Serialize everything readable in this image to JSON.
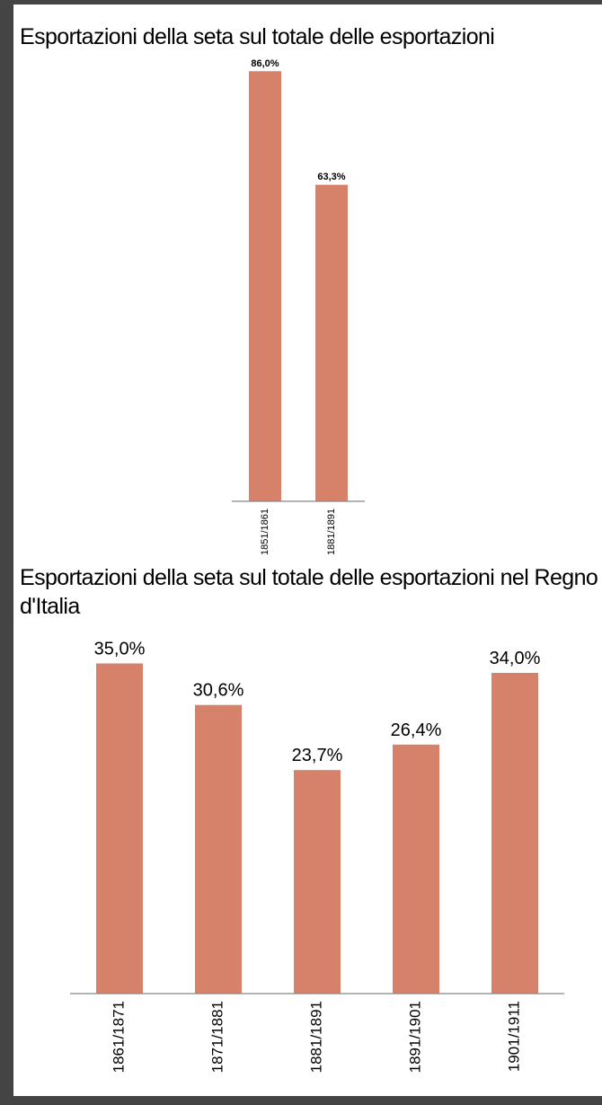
{
  "chart_data": [
    {
      "type": "bar",
      "title": "Esportazioni della seta sul totale delle esportazioni",
      "categories": [
        "1851/1861",
        "1881/1891"
      ],
      "values": [
        86.0,
        63.3
      ],
      "value_labels": [
        "86,0%",
        "63,3%"
      ],
      "color": "#d6826a",
      "ylim": [
        0,
        90
      ]
    },
    {
      "type": "bar",
      "title": "Esportazioni della seta sul totale delle esportazioni nel Regno d'Italia",
      "categories": [
        "1861/1871",
        "1871/1881",
        "1881/1891",
        "1891/1901",
        "1901/1911"
      ],
      "values": [
        35.0,
        30.6,
        23.7,
        26.4,
        34.0
      ],
      "value_labels": [
        "35,0%",
        "30,6%",
        "23,7%",
        "26,4%",
        "34,0%"
      ],
      "color": "#d6826a",
      "ylim": [
        0,
        36
      ]
    }
  ]
}
